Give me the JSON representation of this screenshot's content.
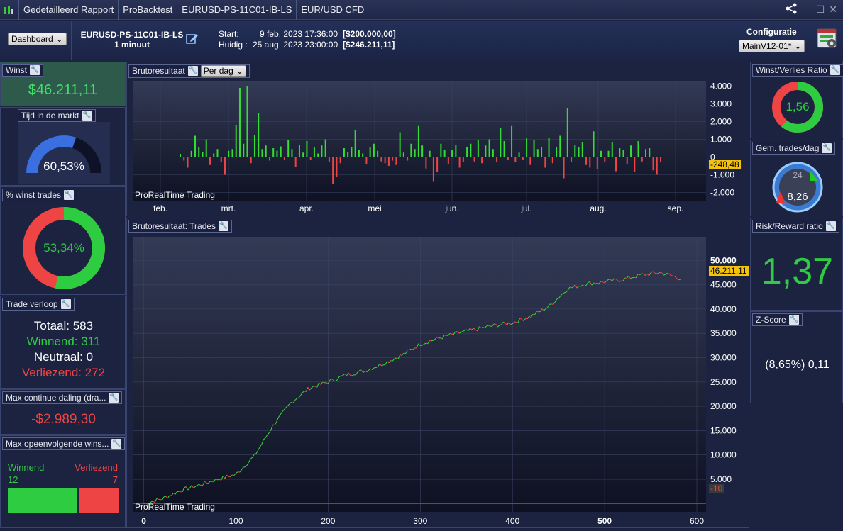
{
  "titlebar": {
    "tabs": [
      "Gedetailleerd Rapport",
      "ProBacktest",
      "EURUSD-PS-11C01-IB-LS",
      "EUR/USD CFD"
    ]
  },
  "toolbar": {
    "dashboard_label": "Dashboard",
    "system_name": "EURUSD-PS-11C01-IB-LS",
    "timeframe": "1 minuut",
    "start_label": "Start:",
    "start_date": "9 feb. 2023 17:36:00",
    "start_capital": "[$200.000,00]",
    "current_label": "Huidig :",
    "current_date": "25 aug. 2023 23:00:00",
    "current_capital": "[$246.211,11]",
    "config_label": "Configuratie",
    "config_value": "MainV12-01*"
  },
  "left": {
    "winst_title": "Winst",
    "winst_value": "$46.211,11",
    "tijd_title": "Tijd in de markt",
    "tijd_value": "60,53%",
    "tijd_fraction": 0.6053,
    "winst_trades_title": "% winst trades",
    "winst_trades_value": "53,34%",
    "winst_trades_fraction": 0.5334,
    "verloop_title": "Trade verloop",
    "totaal": "Totaal: 583",
    "winnend": "Winnend: 311",
    "neutraal": "Neutraal: 0",
    "verliezend": "Verliezend: 272",
    "maxdaling_title": "Max continue daling (dra...",
    "maxdaling_value": "-$2.989,30",
    "maxopv_title": "Max opeenvolgende wins...",
    "maxopv_win_label": "Winnend",
    "maxopv_win_value": "12",
    "maxopv_loss_label": "Verliezend",
    "maxopv_loss_value": "7"
  },
  "right": {
    "wv_title": "Winst/Verlies Ratio",
    "wv_value": "1,56",
    "gem_title": "Gem. trades/dag",
    "gem_value": "8,26",
    "gem_dial_value": "24",
    "rr_title": "Risk/Reward ratio",
    "rr_value": "1,37",
    "z_title": "Z-Score",
    "z_value": "(8,65%) 0,11"
  },
  "chart_top": {
    "title": "Brutoresultaat",
    "period": "Per dag",
    "watermark": "ProRealTime Trading",
    "current_value": "-248,48"
  },
  "chart_bottom": {
    "title": "Brutoresultaat: Trades",
    "watermark": "ProRealTime Trading",
    "current_value": "46.211,11",
    "zero_label": "-10"
  },
  "chart_data": [
    {
      "type": "bar",
      "title": "Brutoresultaat",
      "x_tick_labels": [
        "feb.",
        "mrt.",
        "apr.",
        "mei",
        "jun.",
        "jul.",
        "aug.",
        "sep."
      ],
      "y_tick_labels": [
        "4.000",
        "3.000",
        "2.000",
        "1.000",
        "0",
        "-1.000",
        "-2.000"
      ],
      "ylim": [
        -2500,
        4300
      ],
      "values": [
        180,
        -200,
        -600,
        350,
        1200,
        550,
        300,
        1000,
        -450,
        200,
        450,
        -300,
        -1000,
        350,
        450,
        1800,
        3900,
        750,
        4000,
        -350,
        1250,
        2500,
        450,
        650,
        -200,
        500,
        350,
        600,
        -150,
        950,
        450,
        -550,
        700,
        250,
        900,
        -150,
        550,
        200,
        650,
        1000,
        -300,
        -1500,
        -1100,
        -350,
        500,
        300,
        550,
        1500,
        400,
        200,
        -400,
        550,
        750,
        350,
        -250,
        -350,
        -500,
        -200,
        -450,
        1400,
        250,
        -200,
        750,
        450,
        1750,
        650,
        -650,
        350,
        -1400,
        -850,
        750,
        400,
        -400,
        400,
        700,
        -600,
        -300,
        550,
        750,
        -250,
        950,
        -350,
        650,
        1000,
        450,
        -300,
        1650,
        900,
        -150,
        1750,
        -300,
        250,
        -150,
        1050,
        -450,
        950,
        450,
        550,
        -600,
        1100,
        -350,
        550,
        1200,
        -1200,
        2750,
        -300,
        700,
        550,
        850,
        -450,
        -600,
        1450,
        -700,
        350,
        -300,
        350,
        850,
        -800,
        500,
        400,
        -400,
        650,
        -850,
        900,
        -250,
        450,
        500,
        -750,
        -1000,
        -300
      ]
    },
    {
      "type": "line",
      "title": "Brutoresultaat: Trades",
      "x_tick_labels": [
        "0",
        "100",
        "200",
        "300",
        "400",
        "500",
        "600"
      ],
      "y_tick_labels": [
        "50.000",
        "45.000",
        "40.000",
        "35.000",
        "30.000",
        "25.000",
        "20.000",
        "15.000",
        "10.000",
        "5.000"
      ],
      "xlim": [
        -12,
        610
      ],
      "ylim": [
        -1700,
        54700
      ],
      "x": [
        0,
        20,
        40,
        60,
        80,
        100,
        120,
        140,
        160,
        180,
        200,
        220,
        240,
        260,
        280,
        300,
        320,
        340,
        360,
        380,
        400,
        420,
        440,
        460,
        480,
        500,
        520,
        540,
        560,
        570,
        583
      ],
      "y": [
        0,
        1000,
        2700,
        3800,
        5000,
        6000,
        9800,
        16000,
        20800,
        23800,
        25000,
        26500,
        27300,
        28800,
        30500,
        32800,
        34000,
        35000,
        35800,
        36600,
        37200,
        38500,
        40600,
        44200,
        45200,
        45600,
        46100,
        47000,
        47500,
        47000,
        46211
      ]
    }
  ]
}
